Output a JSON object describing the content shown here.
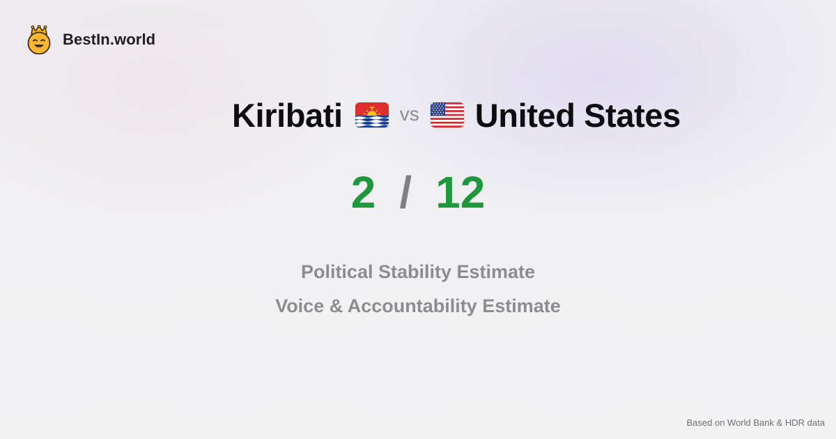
{
  "brand": {
    "name": "BestIn.world",
    "icon": "crown-smiley-icon"
  },
  "comparison": {
    "left_country": "Kiribati",
    "left_flag": "kiribati-flag",
    "vs_label": "vs",
    "right_country": "United States",
    "right_flag": "united-states-flag"
  },
  "score": {
    "left": "2",
    "separator": "/",
    "right": "12"
  },
  "metrics": [
    "Political Stability Estimate",
    "Voice & Accountability Estimate"
  ],
  "footer": {
    "source": "Based on World Bank & HDR data"
  },
  "colors": {
    "score": "#1f973d",
    "muted": "#8d8d91",
    "text": "#0d0d10"
  }
}
